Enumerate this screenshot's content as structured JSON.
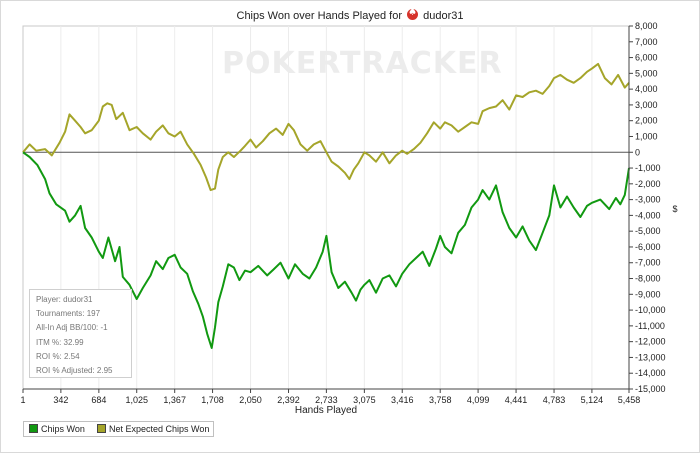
{
  "chart_data": {
    "type": "line",
    "title": "Chips Won over Hands Played for",
    "player_in_title": "dudor31",
    "watermark": "POKERTRACKER",
    "xlabel": "Hands Played",
    "ylabel": "$",
    "x_ticks": [
      "1",
      "342",
      "684",
      "1,025",
      "1,367",
      "1,708",
      "2,050",
      "2,392",
      "2,733",
      "3,075",
      "3,416",
      "3,758",
      "4,099",
      "4,441",
      "4,783",
      "5,124",
      "5,458"
    ],
    "x_tick_values": [
      1,
      342,
      684,
      1025,
      1367,
      1708,
      2050,
      2392,
      2733,
      3075,
      3416,
      3758,
      4099,
      4441,
      4783,
      5124,
      5458
    ],
    "y_ticks": [
      "8,000",
      "7,000",
      "6,000",
      "5,000",
      "4,000",
      "3,000",
      "2,000",
      "1,000",
      "0",
      "-1,000",
      "-2,000",
      "-3,000",
      "-4,000",
      "-5,000",
      "-6,000",
      "-7,000",
      "-8,000",
      "-9,000",
      "-10,000",
      "-11,000",
      "-12,000",
      "-13,000",
      "-14,000",
      "-15,000"
    ],
    "xlim": [
      1,
      5458
    ],
    "ylim": [
      -15000,
      8000
    ],
    "grid": "vertical",
    "legend_position": "bottom-left",
    "series": [
      {
        "name": "Chips Won",
        "color": "#119911",
        "x": [
          1,
          60,
          130,
          200,
          240,
          300,
          380,
          420,
          470,
          520,
          560,
          620,
          684,
          720,
          770,
          830,
          870,
          900,
          960,
          1025,
          1080,
          1150,
          1200,
          1260,
          1310,
          1367,
          1420,
          1480,
          1530,
          1580,
          1620,
          1660,
          1700,
          1730,
          1760,
          1800,
          1850,
          1900,
          1950,
          2000,
          2050,
          2120,
          2200,
          2260,
          2320,
          2392,
          2450,
          2520,
          2580,
          2640,
          2700,
          2733,
          2780,
          2840,
          2900,
          2960,
          3000,
          3040,
          3075,
          3120,
          3180,
          3240,
          3300,
          3360,
          3416,
          3480,
          3540,
          3600,
          3660,
          3720,
          3758,
          3800,
          3860,
          3920,
          3980,
          4040,
          4099,
          4140,
          4200,
          4260,
          4320,
          4380,
          4441,
          4500,
          4560,
          4620,
          4680,
          4740,
          4783,
          4840,
          4900,
          4960,
          5020,
          5080,
          5124,
          5200,
          5280,
          5340,
          5380,
          5420,
          5458
        ],
        "values": [
          0,
          -300,
          -800,
          -1700,
          -2600,
          -3300,
          -3700,
          -4400,
          -4000,
          -3400,
          -4800,
          -5400,
          -6300,
          -6700,
          -5400,
          -6900,
          -6000,
          -7900,
          -8400,
          -9300,
          -8600,
          -7800,
          -6900,
          -7400,
          -6700,
          -6500,
          -7300,
          -7700,
          -8800,
          -9600,
          -10400,
          -11500,
          -12400,
          -11100,
          -9500,
          -8500,
          -7100,
          -7300,
          -8100,
          -7500,
          -7600,
          -7200,
          -7800,
          -7400,
          -7000,
          -8000,
          -7100,
          -7700,
          -8000,
          -7300,
          -6300,
          -5300,
          -7600,
          -8600,
          -8200,
          -8900,
          -9400,
          -8700,
          -8400,
          -8100,
          -8900,
          -8000,
          -7800,
          -8500,
          -7700,
          -7100,
          -6700,
          -6300,
          -7200,
          -6100,
          -5300,
          -6000,
          -6400,
          -5100,
          -4600,
          -3500,
          -3000,
          -2400,
          -3000,
          -2100,
          -3800,
          -4800,
          -5400,
          -4700,
          -5600,
          -6200,
          -5100,
          -4000,
          -2100,
          -3500,
          -2800,
          -3500,
          -4100,
          -3400,
          -3200,
          -3000,
          -3600,
          -2900,
          -3300,
          -2700,
          -1000
        ]
      },
      {
        "name": "Net Expected Chips Won",
        "color": "#a5a52a",
        "x": [
          1,
          60,
          120,
          200,
          260,
          330,
          380,
          420,
          470,
          520,
          560,
          620,
          684,
          720,
          760,
          800,
          840,
          900,
          960,
          1025,
          1080,
          1150,
          1200,
          1260,
          1310,
          1367,
          1420,
          1480,
          1540,
          1600,
          1650,
          1690,
          1730,
          1760,
          1800,
          1850,
          1900,
          1960,
          2000,
          2050,
          2100,
          2160,
          2220,
          2280,
          2340,
          2392,
          2440,
          2500,
          2560,
          2620,
          2680,
          2733,
          2780,
          2840,
          2900,
          2940,
          2980,
          3020,
          3075,
          3120,
          3180,
          3240,
          3300,
          3360,
          3416,
          3460,
          3520,
          3580,
          3640,
          3700,
          3758,
          3800,
          3860,
          3920,
          3980,
          4040,
          4099,
          4140,
          4200,
          4260,
          4320,
          4380,
          4441,
          4500,
          4560,
          4620,
          4680,
          4740,
          4783,
          4840,
          4900,
          4960,
          5020,
          5080,
          5124,
          5180,
          5240,
          5300,
          5360,
          5420,
          5458
        ],
        "values": [
          0,
          500,
          100,
          200,
          -200,
          600,
          1300,
          2400,
          2000,
          1600,
          1200,
          1400,
          2000,
          2900,
          3100,
          3000,
          2100,
          2500,
          1400,
          1600,
          1200,
          800,
          1300,
          1700,
          1200,
          1000,
          1300,
          500,
          -100,
          -800,
          -1600,
          -2400,
          -2300,
          -1100,
          -300,
          0,
          -300,
          100,
          400,
          800,
          300,
          700,
          1200,
          1500,
          1100,
          1800,
          1400,
          500,
          100,
          500,
          700,
          0,
          -600,
          -900,
          -1300,
          -1700,
          -1100,
          -700,
          0,
          -200,
          -600,
          0,
          -700,
          -200,
          100,
          -100,
          200,
          600,
          1200,
          1900,
          1500,
          1900,
          1700,
          1300,
          1600,
          1900,
          1800,
          2600,
          2800,
          2900,
          3300,
          2700,
          3600,
          3500,
          3800,
          3900,
          3700,
          4200,
          4700,
          4900,
          4600,
          4400,
          4700,
          5100,
          5300,
          5600,
          4700,
          4300,
          4900,
          4100,
          4400
        ]
      }
    ],
    "annotations": [
      {
        "label": "Player",
        "value": "dudor31"
      },
      {
        "label": "Tournaments",
        "value": "197"
      },
      {
        "label": "All-In Adj BB/100",
        "value": "-1"
      },
      {
        "label": "ITM %",
        "value": "32.99"
      },
      {
        "label": "ROI %",
        "value": "2.54"
      },
      {
        "label": "ROI % Adjusted",
        "value": "2.95"
      }
    ]
  },
  "stats": {
    "player": "Player: dudor31",
    "tournaments": "Tournaments: 197",
    "allin_adj": "All-In Adj BB/100: -1",
    "itm": "ITM %: 32.99",
    "roi": "ROI %: 2.54",
    "roi_adjusted": "ROI % Adjusted: 2.95"
  },
  "legend": {
    "chips_won": "Chips Won",
    "net_expected": "Net Expected Chips Won",
    "chips_won_color": "#119911",
    "net_expected_color": "#a5a52a"
  }
}
